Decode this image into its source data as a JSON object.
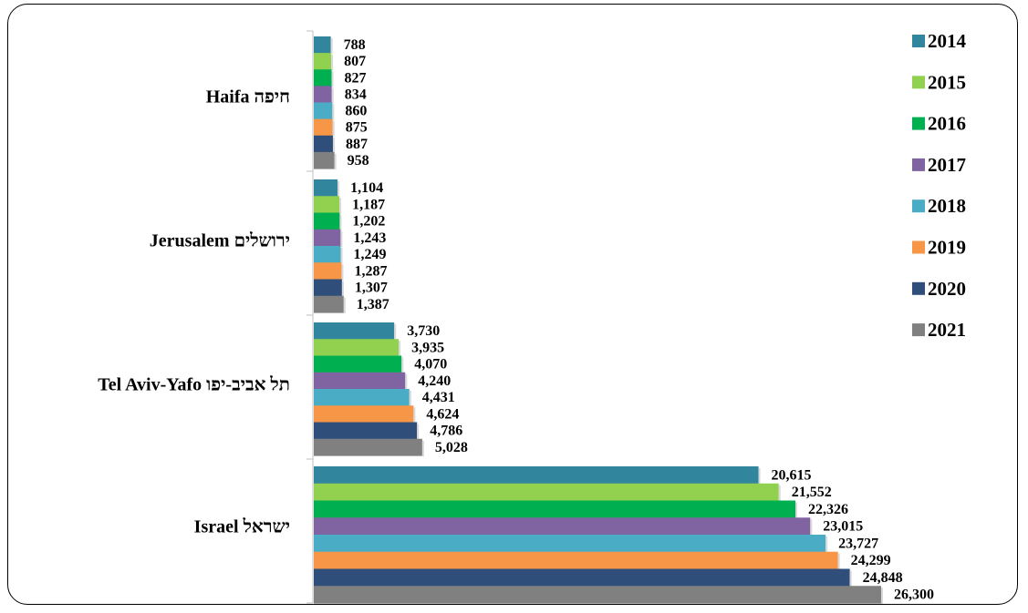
{
  "chart_data": {
    "type": "bar",
    "orientation": "horizontal",
    "categories": [
      "Haifa חיפה",
      "Jerusalem ירושלים",
      "Tel Aviv-Yafo תל אביב-יפו",
      "Israel ישראל"
    ],
    "series": [
      {
        "name": "2014",
        "color": "#31859C",
        "values": [
          788,
          1104,
          3730,
          20615
        ],
        "labels": [
          "788",
          "1,104",
          "3,730",
          "20,615"
        ]
      },
      {
        "name": "2015",
        "color": "#92D050",
        "values": [
          807,
          1187,
          3935,
          21552
        ],
        "labels": [
          "807",
          "1,187",
          "3,935",
          "21,552"
        ]
      },
      {
        "name": "2016",
        "color": "#00B050",
        "values": [
          827,
          1202,
          4070,
          22326
        ],
        "labels": [
          "827",
          "1,202",
          "4,070",
          "22,326"
        ]
      },
      {
        "name": "2017",
        "color": "#8064A2",
        "values": [
          834,
          1243,
          4240,
          23015
        ],
        "labels": [
          "834",
          "1,243",
          "4,240",
          "23,015"
        ]
      },
      {
        "name": "2018",
        "color": "#4BACC6",
        "values": [
          860,
          1249,
          4431,
          23727
        ],
        "labels": [
          "860",
          "1,249",
          "4,431",
          "23,727"
        ]
      },
      {
        "name": "2019",
        "color": "#F79646",
        "values": [
          875,
          1287,
          4624,
          24299
        ],
        "labels": [
          "875",
          "1,287",
          "4,624",
          "24,299"
        ]
      },
      {
        "name": "2020",
        "color": "#2F4F7A",
        "values": [
          887,
          1307,
          4786,
          24848
        ],
        "labels": [
          "887",
          "1,307",
          "4,786",
          "24,848"
        ]
      },
      {
        "name": "2021",
        "color": "#808080",
        "values": [
          958,
          1387,
          5028,
          26300
        ],
        "labels": [
          "958",
          "1,387",
          "5,028",
          "26,300"
        ]
      }
    ],
    "xlim": [
      0,
      30000
    ],
    "grid": false,
    "legend": "right"
  }
}
